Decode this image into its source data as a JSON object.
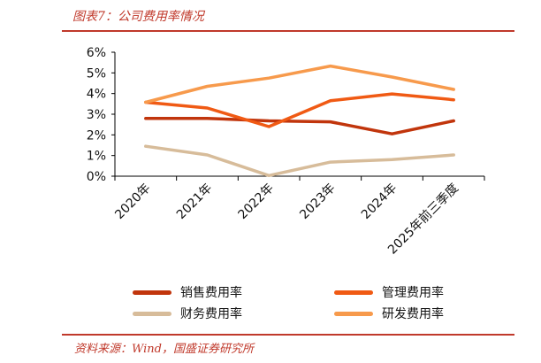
{
  "header": {
    "title": "图表7：公司费用率情况"
  },
  "footer": {
    "source": "资料来源：Wind，国盛证券研究所"
  },
  "colors": {
    "accent": "#c0392b",
    "axis": "#000000"
  },
  "chart_data": {
    "type": "line",
    "x": [
      "2020年",
      "2021年",
      "2022年",
      "2023年",
      "2024年",
      "2025年前三季度"
    ],
    "ylim": [
      0,
      6
    ],
    "yticks": [
      "0%",
      "1%",
      "2%",
      "3%",
      "4%",
      "5%",
      "6%"
    ],
    "grid": false,
    "legend_position": "bottom",
    "series": [
      {
        "name": "销售费用率",
        "color": "#c1350c",
        "values": [
          2.8,
          2.8,
          2.68,
          2.63,
          2.05,
          2.68
        ]
      },
      {
        "name": "管理费用率",
        "color": "#f05a14",
        "values": [
          3.58,
          3.3,
          2.4,
          3.65,
          3.98,
          3.7
        ]
      },
      {
        "name": "财务费用率",
        "color": "#d7bc9a",
        "values": [
          1.45,
          1.03,
          0.03,
          0.68,
          0.8,
          1.03
        ]
      },
      {
        "name": "研发费用率",
        "color": "#f79a4c",
        "values": [
          3.58,
          4.35,
          4.75,
          5.33,
          4.8,
          4.2
        ]
      }
    ]
  }
}
